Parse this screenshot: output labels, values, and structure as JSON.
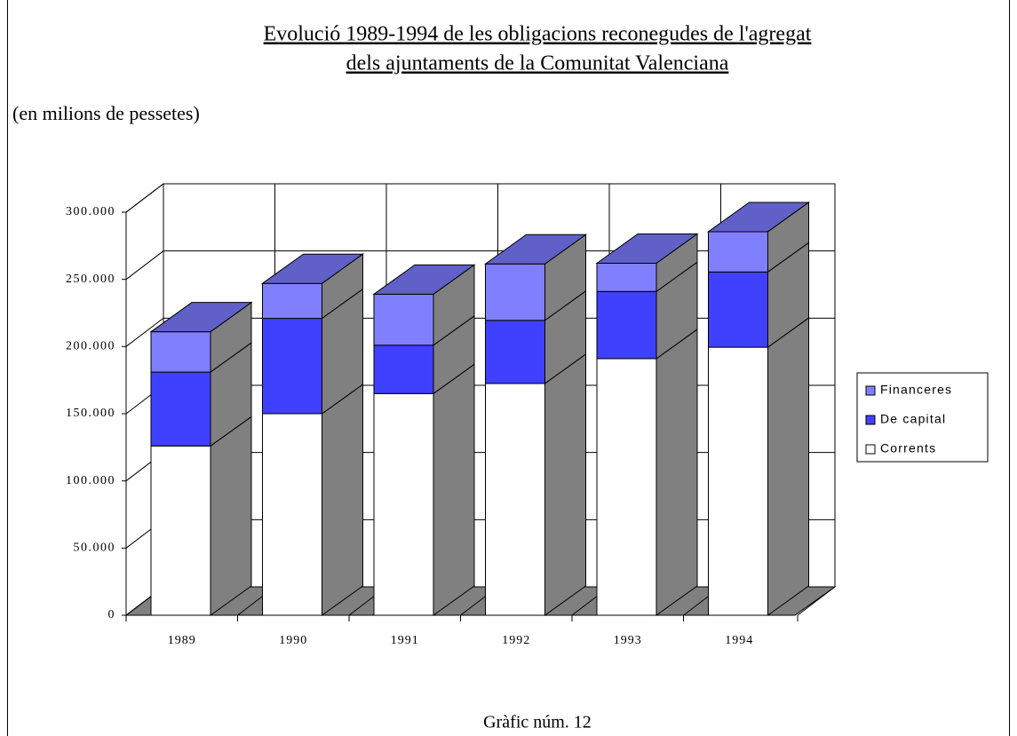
{
  "chart_data": {
    "type": "bar3d_stacked",
    "title": [
      "Evolució 1989-1994 de les obligacions reconegudes de l'agregat",
      "dels ajuntaments de la Comunitat Valenciana"
    ],
    "subtitle": "(en milions de pessetes)",
    "caption": "Gràfic núm. 12",
    "categories": [
      "1989",
      "1990",
      "1991",
      "1992",
      "1993",
      "1994"
    ],
    "series": [
      {
        "name": "Corrents",
        "color": "#ffffff",
        "values": [
          126000,
          150000,
          165000,
          172500,
          191000,
          199500
        ]
      },
      {
        "name": "De capital",
        "color": "#4040ff",
        "values": [
          55000,
          71000,
          36000,
          47000,
          50000,
          56000
        ]
      },
      {
        "name": "Financeres",
        "color": "#8080ff",
        "values": [
          30000,
          26000,
          38000,
          42000,
          21000,
          30000
        ]
      }
    ],
    "ylim": [
      0,
      300000
    ],
    "yticks": [
      0,
      {
        "value": 50000,
        "label": "50.000"
      },
      {
        "value": 100000,
        "label": "100.000"
      },
      {
        "value": 150000,
        "label": "150.000"
      },
      {
        "value": 200000,
        "label": "200.000"
      },
      {
        "value": 250000,
        "label": "250.000"
      },
      {
        "value": 300000,
        "label": "300.000"
      }
    ],
    "grid": true,
    "legend": "right"
  }
}
